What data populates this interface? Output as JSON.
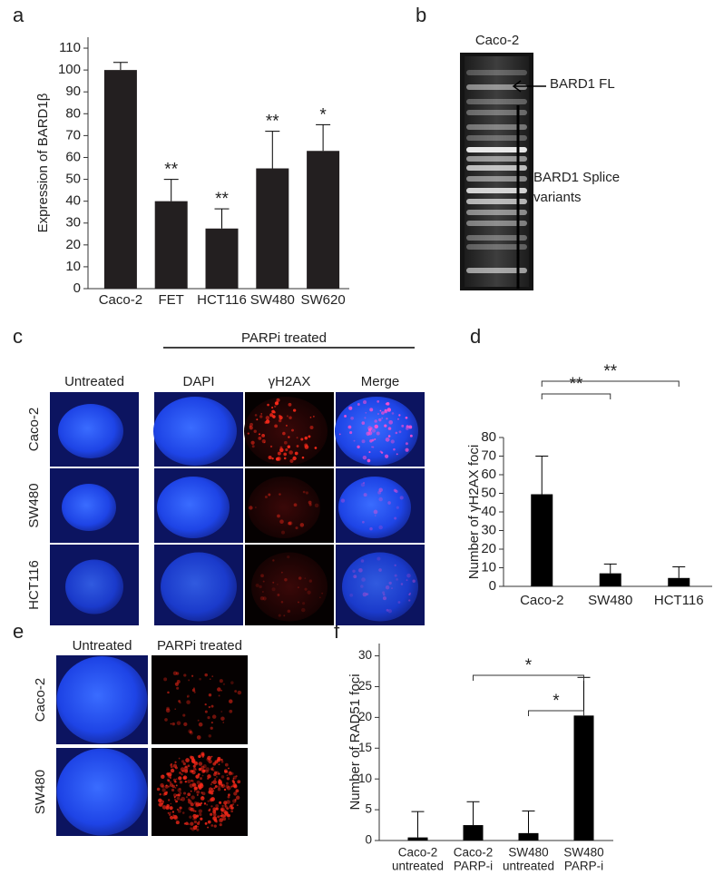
{
  "panel_labels": [
    "a",
    "b",
    "c",
    "d",
    "e",
    "f"
  ],
  "chart_data": [
    {
      "type": "bar",
      "ylabel": "Expression of BARD1β",
      "categories": [
        "Caco-2",
        "FET",
        "HCT116",
        "SW480",
        "SW620"
      ],
      "values": [
        100,
        40,
        27.5,
        55,
        63
      ],
      "errors": [
        3.5,
        10,
        9,
        17,
        12
      ],
      "significance": [
        null,
        "**",
        "**",
        "**",
        "*"
      ],
      "color": "#231f20",
      "ylim": [
        0,
        115
      ],
      "yticks": [
        0,
        10,
        20,
        30,
        40,
        50,
        60,
        70,
        80,
        90,
        100,
        110
      ]
    },
    {
      "type": "bar",
      "ylabel": "Number of γH2AX foci",
      "categories": [
        "Caco-2",
        "SW480",
        "HCT116"
      ],
      "values": [
        49.5,
        7,
        4.5
      ],
      "errors": [
        20.5,
        5,
        6
      ],
      "comparisons": [
        {
          "label": "**",
          "between": [
            0,
            1
          ]
        },
        {
          "label": "**",
          "between": [
            0,
            2
          ]
        }
      ],
      "color": "#000000",
      "ylim": [
        0,
        80
      ],
      "yticks": [
        0,
        10,
        20,
        30,
        40,
        50,
        60,
        70,
        80
      ]
    },
    {
      "type": "bar",
      "ylabel": "Number of RAD51 foci",
      "categories": [
        [
          "Caco-2",
          "untreated"
        ],
        [
          "Caco-2",
          "PARP-i"
        ],
        [
          "SW480",
          "untreated"
        ],
        [
          "SW480",
          "PARP-i"
        ]
      ],
      "values": [
        0.5,
        2.5,
        1.2,
        20.3
      ],
      "errors": [
        4.2,
        3.8,
        3.6,
        6.2
      ],
      "comparisons": [
        {
          "label": "*",
          "between": [
            1,
            3
          ]
        },
        {
          "label": "*",
          "between": [
            2,
            3
          ]
        }
      ],
      "color": "#000000",
      "ylim": [
        0,
        32
      ],
      "yticks": [
        0,
        5,
        10,
        15,
        20,
        25,
        30
      ]
    }
  ],
  "gel": {
    "lane": "Caco-2",
    "band_label": "BARD1 FL",
    "range_label": [
      "BARD1 Splice",
      "variants"
    ]
  },
  "panel_c": {
    "group_header": "PARPi treated",
    "columns": [
      "Untreated",
      "DAPI",
      "γH2AX",
      "Merge"
    ],
    "rows": [
      "Caco-2",
      "SW480",
      "HCT116"
    ]
  },
  "panel_e": {
    "columns": [
      "Untreated",
      "PARPi treated"
    ],
    "rows": [
      "Caco-2",
      "SW480"
    ]
  }
}
